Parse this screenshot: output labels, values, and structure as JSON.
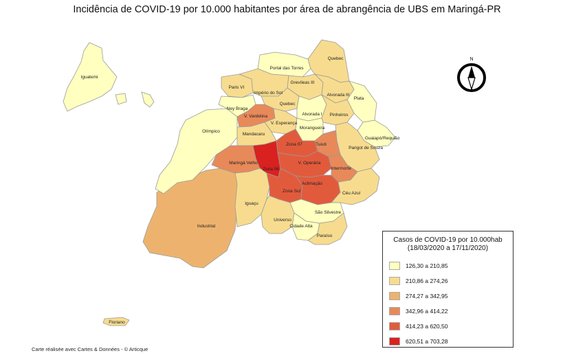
{
  "title": "Incidência de COVID-19 por 10.000 habitantes por área  de abrangência de UBS em Maringá-PR",
  "credit": "Carte réalisée avec Cartes & Données - © Articque",
  "north_arrow": {
    "icon": "north-arrow-compass-icon",
    "label": "N"
  },
  "legend": {
    "title_line1": "Casos de COVID-19 por 10.000hab",
    "title_line2": "(18/03/2020 a 17/11/2020)",
    "classes": [
      {
        "label": "126,30 a 210,85",
        "color": "#ffffbf"
      },
      {
        "label": "210,86 a 274,26",
        "color": "#f7dc8f"
      },
      {
        "label": "274,27 a 342,95",
        "color": "#edb36e"
      },
      {
        "label": "342,96 a 414,22",
        "color": "#e8895a"
      },
      {
        "label": "414,23 a 620,50",
        "color": "#e25a3c"
      },
      {
        "label": "620,51 a 703,28",
        "color": "#d9211f"
      }
    ]
  },
  "areas": [
    {
      "name": "Iguatemi",
      "class": 0
    },
    {
      "name": "Floriano",
      "class": 1
    },
    {
      "name": "Portal das Torres",
      "class": 0
    },
    {
      "name": "Quebec",
      "class": 1
    },
    {
      "name": "Paris VI",
      "class": 1
    },
    {
      "name": "Império do Sol",
      "class": 1
    },
    {
      "name": "Grevíleas III",
      "class": 1
    },
    {
      "name": "Alvorada III",
      "class": 1
    },
    {
      "name": "Iguaçu",
      "class": 1
    },
    {
      "name": "Ney Braga",
      "class": 0
    },
    {
      "name": "Olímpico",
      "class": 0
    },
    {
      "name": "Alvorada I",
      "class": 0
    },
    {
      "name": "Pinheiros",
      "class": 1
    },
    {
      "name": "Mandacaru",
      "class": 1
    },
    {
      "name": "V. Esperança",
      "class": 1
    },
    {
      "name": "V. Vardelina",
      "class": 3
    },
    {
      "name": "Morangueira",
      "class": 0
    },
    {
      "name": "Guaiapó/Requião",
      "class": 0
    },
    {
      "name": "Zona 07",
      "class": 4
    },
    {
      "name": "Tuiuti",
      "class": 3
    },
    {
      "name": "Parigot de Souza",
      "class": 1
    },
    {
      "name": "Maringá Velho",
      "class": 3
    },
    {
      "name": "Zona 06",
      "class": 5
    },
    {
      "name": "V. Operária",
      "class": 4
    },
    {
      "name": "Intermorte",
      "class": 3
    },
    {
      "name": "Aclimação",
      "class": 4
    },
    {
      "name": "Zona Sul",
      "class": 4
    },
    {
      "name": "Céu Azul",
      "class": 1
    },
    {
      "name": "Industrial",
      "class": 2
    },
    {
      "name": "São Silvestre",
      "class": 0
    },
    {
      "name": "Universo",
      "class": 1
    },
    {
      "name": "Cidade Alta",
      "class": 0
    },
    {
      "name": "Paraíso",
      "class": 1
    },
    {
      "name": "Plata",
      "class": 0
    }
  ]
}
